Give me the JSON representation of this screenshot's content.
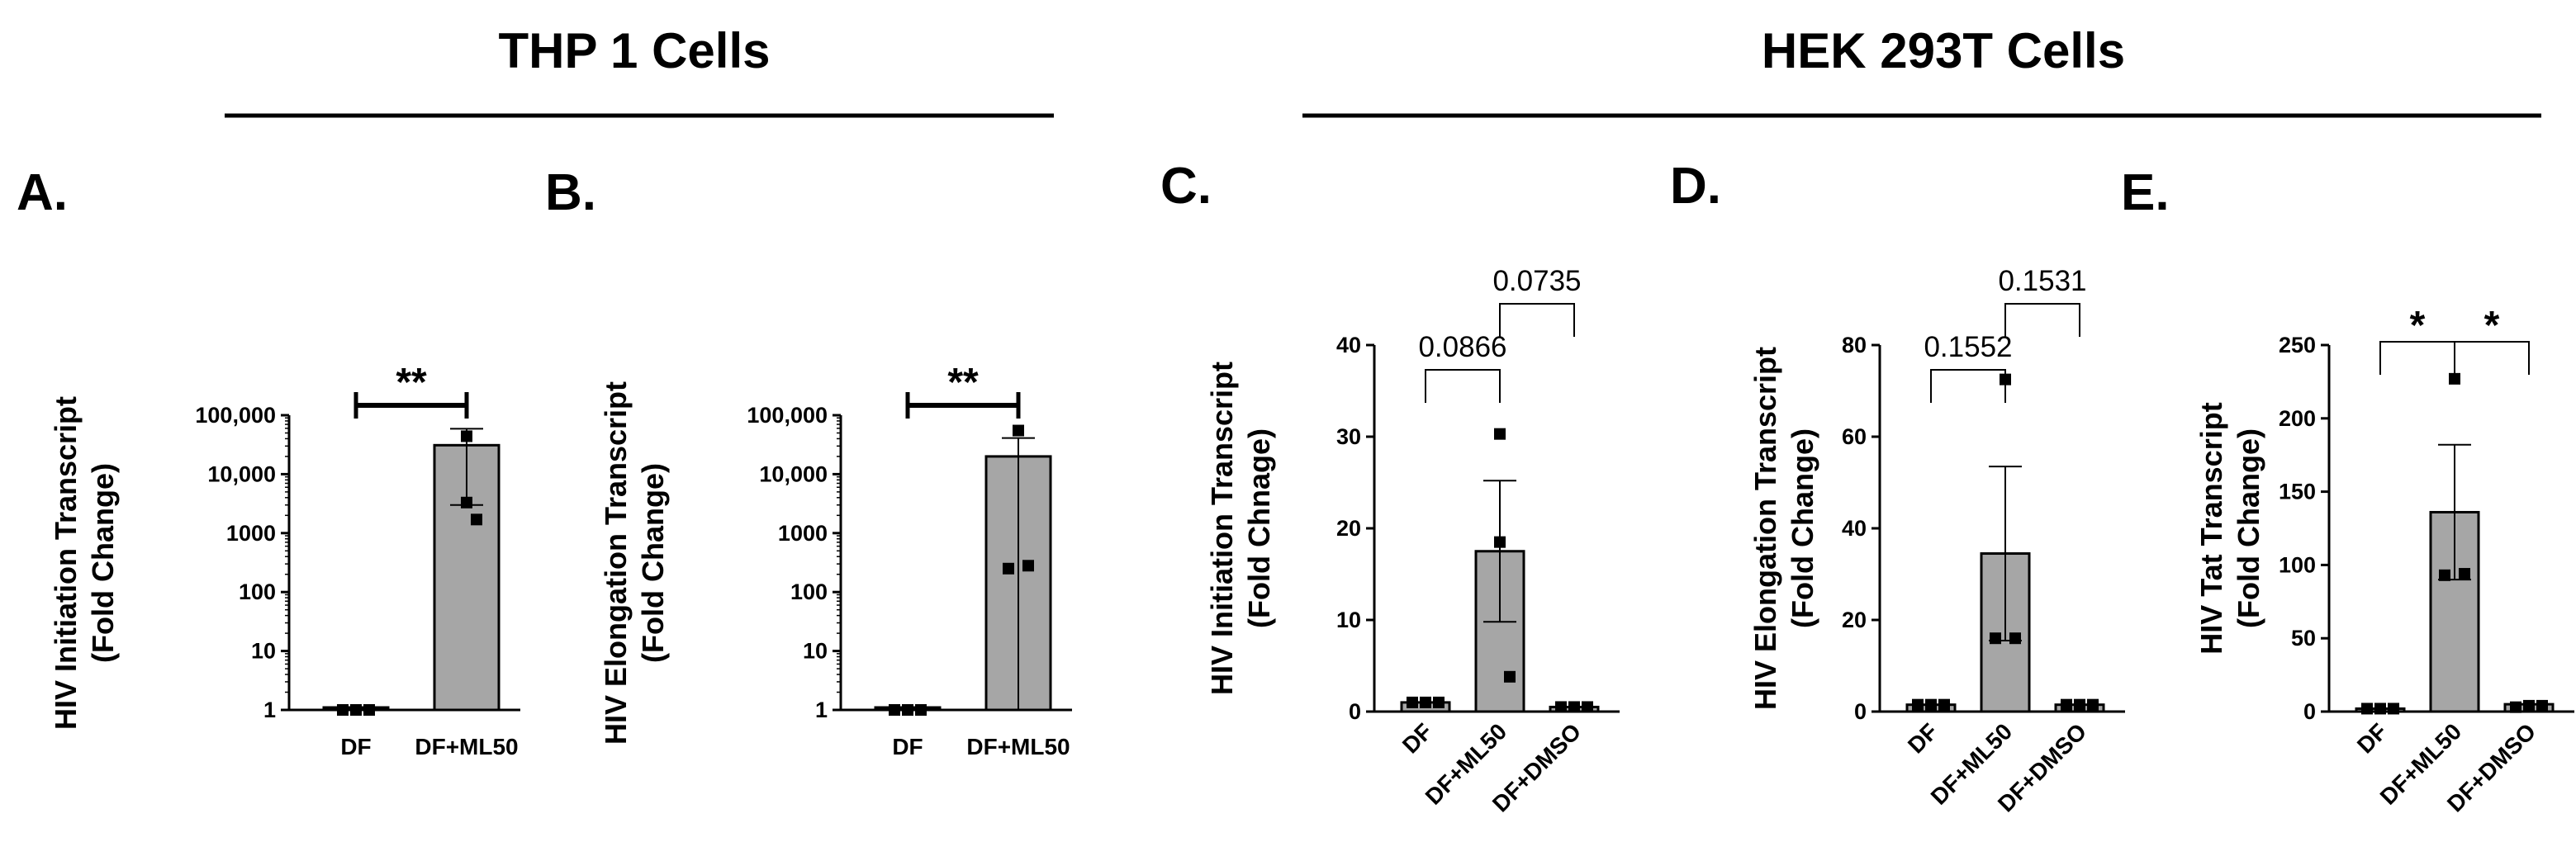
{
  "group_titles": {
    "left": "THP 1 Cells",
    "right": "HEK 293T Cells"
  },
  "chart_data": [
    {
      "type": "bar",
      "panel": "A.",
      "ylabel": [
        "HIV Initiation Transcript",
        "(Fold Change)"
      ],
      "yscale": "log",
      "ylim": [
        1,
        100000
      ],
      "yticks": [
        1,
        10,
        100,
        1000,
        10000,
        100000
      ],
      "ytick_labels": [
        "1",
        "10",
        "100",
        "1000",
        "10,000",
        "100,000"
      ],
      "categories": [
        "DF",
        "DF+ML50"
      ],
      "values": [
        1,
        31000
      ],
      "errors": [
        0,
        28000
      ],
      "points": [
        [
          1,
          1,
          1
        ],
        [
          44000,
          3300,
          1700
        ]
      ],
      "annotations": [
        {
          "from": 0,
          "to": 1,
          "text": "**"
        }
      ],
      "rotate_labels": false
    },
    {
      "type": "bar",
      "panel": "B.",
      "ylabel": [
        "HIV Elongation Transcript",
        "(Fold Change)"
      ],
      "yscale": "log",
      "ylim": [
        1,
        100000
      ],
      "yticks": [
        1,
        10,
        100,
        1000,
        10000,
        100000
      ],
      "ytick_labels": [
        "1",
        "10",
        "100",
        "1000",
        "10,000",
        "100,000"
      ],
      "categories": [
        "DF",
        "DF+ML50"
      ],
      "values": [
        1,
        20000
      ],
      "errors": [
        0,
        21000
      ],
      "points": [
        [
          1,
          1,
          1
        ],
        [
          55000,
          250,
          280
        ]
      ],
      "annotations": [
        {
          "from": 0,
          "to": 1,
          "text": "**"
        }
      ],
      "rotate_labels": false
    },
    {
      "type": "bar",
      "panel": "C.",
      "ylabel": [
        "HIV Initiation Transcript",
        "(Fold Chnage)"
      ],
      "yscale": "linear",
      "ylim": [
        0,
        40
      ],
      "yticks": [
        0,
        10,
        20,
        30,
        40
      ],
      "ytick_labels": [
        "0",
        "10",
        "20",
        "30",
        "40"
      ],
      "categories": [
        "DF",
        "DF+ML50",
        "DF+DMSO"
      ],
      "values": [
        1,
        17.5,
        0.5
      ],
      "errors": [
        0,
        7.7,
        0
      ],
      "points": [
        [
          1,
          1,
          1
        ],
        [
          30.3,
          18.5,
          3.8
        ],
        [
          0.5,
          0.5,
          0.5
        ]
      ],
      "annotations": [
        {
          "from": 0,
          "to": 1,
          "text": "0.0866"
        },
        {
          "from": 1,
          "to": 2,
          "text": "0.0735"
        }
      ],
      "rotate_labels": true
    },
    {
      "type": "bar",
      "panel": "D.",
      "ylabel": [
        "HIV Elongation Transcript",
        "(Fold Change)"
      ],
      "yscale": "linear",
      "ylim": [
        0,
        80
      ],
      "yticks": [
        0,
        20,
        40,
        60,
        80
      ],
      "ytick_labels": [
        "0",
        "20",
        "40",
        "60",
        "80"
      ],
      "categories": [
        "DF",
        "DF+ML50",
        "DF+DMSO"
      ],
      "values": [
        1.5,
        34.5,
        1.5
      ],
      "errors": [
        0,
        19,
        0
      ],
      "points": [
        [
          1.5,
          1.5,
          1.5
        ],
        [
          72.5,
          16,
          16
        ],
        [
          1.5,
          1.5,
          1.5
        ]
      ],
      "annotations": [
        {
          "from": 0,
          "to": 1,
          "text": "0.1552"
        },
        {
          "from": 1,
          "to": 2,
          "text": "0.1531"
        }
      ],
      "rotate_labels": true
    },
    {
      "type": "bar",
      "panel": "E.",
      "ylabel": [
        "HIV Tat Transcript",
        "(Fold Change)"
      ],
      "yscale": "linear",
      "ylim": [
        0,
        250
      ],
      "yticks": [
        0,
        50,
        100,
        150,
        200,
        250
      ],
      "ytick_labels": [
        "0",
        "50",
        "100",
        "150",
        "200",
        "250"
      ],
      "categories": [
        "DF",
        "DF+ML50",
        "DF+DMSO"
      ],
      "values": [
        2,
        136,
        5
      ],
      "errors": [
        0,
        46,
        0
      ],
      "points": [
        [
          2,
          2,
          2
        ],
        [
          227,
          93,
          94
        ],
        [
          3,
          4,
          4
        ]
      ],
      "annotations": [
        {
          "from": 0,
          "to": 1,
          "text": "*"
        },
        {
          "from": 1,
          "to": 2,
          "text": "*"
        }
      ],
      "rotate_labels": true
    }
  ]
}
